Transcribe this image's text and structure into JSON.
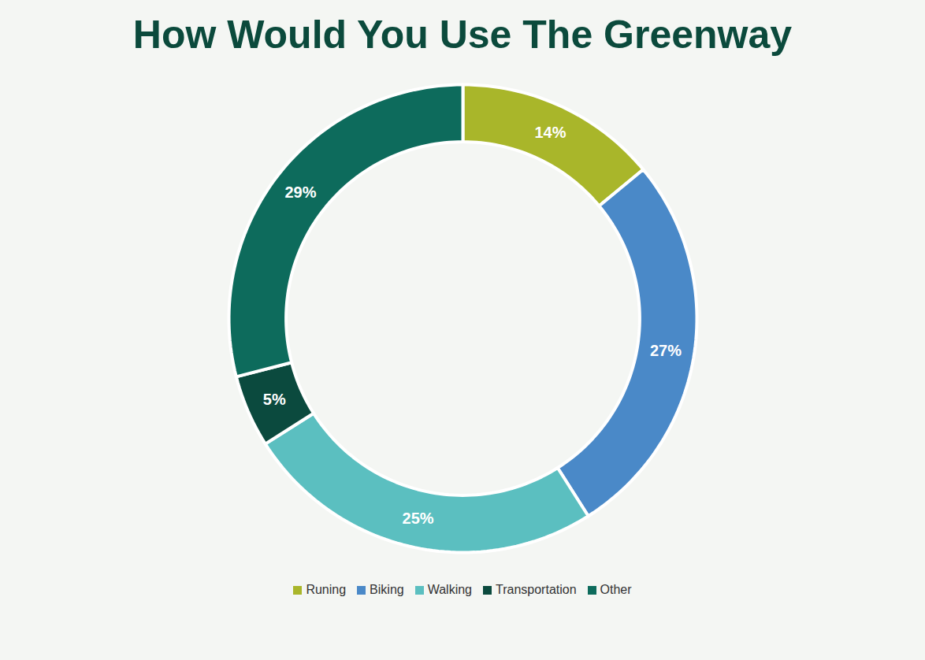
{
  "chart_data": {
    "type": "donut",
    "title": "How Would You Use The Greenway",
    "categories": [
      "Runing",
      "Biking",
      "Walking",
      "Transportation",
      "Other"
    ],
    "values": [
      14,
      27,
      25,
      5,
      29
    ],
    "value_labels": [
      "14%",
      "27%",
      "25%",
      "5%",
      "29%"
    ],
    "colors": [
      "#a9b62a",
      "#4a89c8",
      "#5bbfc0",
      "#0b4a3e",
      "#0d6b5c"
    ],
    "data_labels": true,
    "legend": "bottom"
  }
}
